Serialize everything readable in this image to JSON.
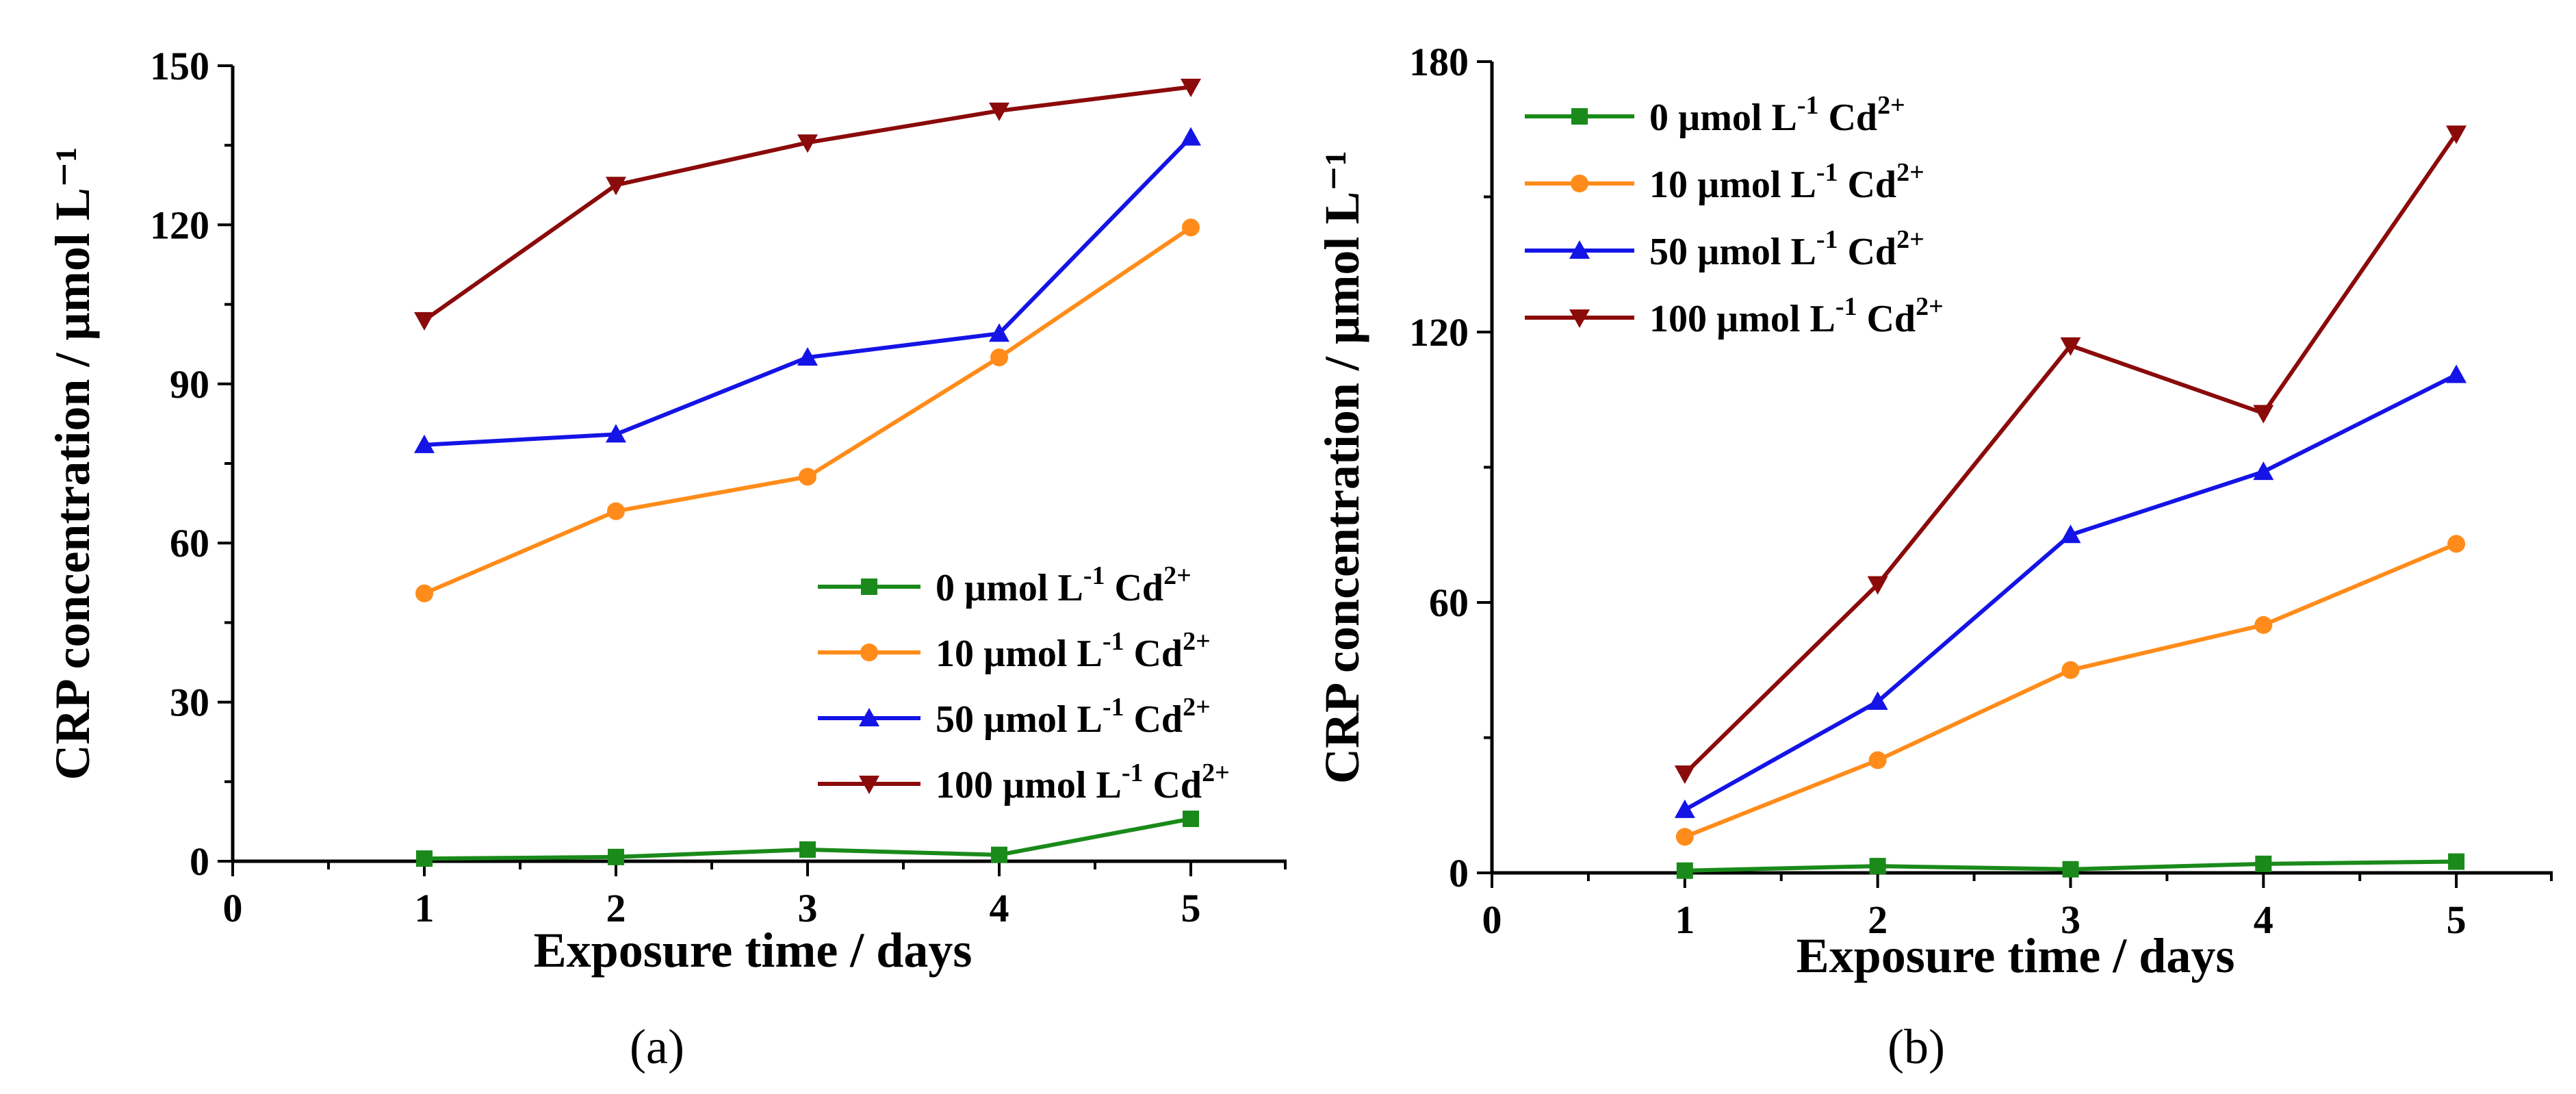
{
  "figure": {
    "panel_labels": [
      "(a)",
      "(b)"
    ]
  },
  "chart_data": [
    {
      "type": "line",
      "panel": "(a)",
      "title": "",
      "xlabel": "Exposure time / days",
      "ylabel": "CRP concentration / µmol L⁻¹",
      "xlim": [
        0,
        5.5
      ],
      "ylim": [
        0,
        150
      ],
      "xticks": [
        0,
        1,
        2,
        3,
        4,
        5
      ],
      "yticks": [
        0,
        30,
        60,
        90,
        120,
        150
      ],
      "legend_position": "lower-right",
      "x": [
        1,
        2,
        3,
        4,
        5
      ],
      "series": [
        {
          "name": "0 µmol L⁻¹ Cd²⁺",
          "legend_main": "0 µmol L",
          "legend_sup1": "-1",
          "legend_mid": " Cd",
          "legend_sup2": "2+",
          "color": "#1a8a1a",
          "marker": "square",
          "values": [
            0.5,
            0.8,
            2.2,
            1.2,
            8.0
          ]
        },
        {
          "name": "10 µmol L⁻¹ Cd²⁺",
          "legend_main": "10 µmol L",
          "legend_sup1": "-1",
          "legend_mid": " Cd",
          "legend_sup2": "2+",
          "color": "#ff8c1a",
          "marker": "circle",
          "values": [
            50.5,
            66,
            72.5,
            95,
            119.5
          ]
        },
        {
          "name": "50 µmol L⁻¹ Cd²⁺",
          "legend_main": "50 µmol L",
          "legend_sup1": "-1",
          "legend_mid": " Cd",
          "legend_sup2": "2+",
          "color": "#1414e6",
          "marker": "triangle-up",
          "values": [
            78.5,
            80.5,
            95,
            99.5,
            136.5
          ]
        },
        {
          "name": "100 µmol L⁻¹ Cd²⁺",
          "legend_main": "100 µmol L",
          "legend_sup1": "-1",
          "legend_mid": " Cd",
          "legend_sup2": "2+",
          "color": "#8b0a0a",
          "marker": "triangle-down",
          "values": [
            102,
            127.5,
            135.5,
            141.5,
            146
          ]
        }
      ]
    },
    {
      "type": "line",
      "panel": "(b)",
      "title": "",
      "xlabel": "Exposure time / days",
      "ylabel": "CRP concentration / µmol L⁻¹",
      "xlim": [
        0,
        5.5
      ],
      "ylim": [
        0,
        180
      ],
      "xticks": [
        0,
        1,
        2,
        3,
        4,
        5
      ],
      "yticks": [
        0,
        60,
        120,
        180
      ],
      "legend_position": "top-left",
      "x": [
        1,
        2,
        3,
        4,
        5
      ],
      "series": [
        {
          "name": "0 µmol L⁻¹ Cd²⁺",
          "legend_main": "0 µmol L",
          "legend_sup1": "-1",
          "legend_mid": " Cd",
          "legend_sup2": "2+",
          "color": "#1a8a1a",
          "marker": "square",
          "values": [
            0.5,
            1.5,
            0.8,
            2.0,
            2.5
          ]
        },
        {
          "name": "10 µmol L⁻¹ Cd²⁺",
          "legend_main": "10 µmol L",
          "legend_sup1": "-1",
          "legend_mid": " Cd",
          "legend_sup2": "2+",
          "color": "#ff8c1a",
          "marker": "circle",
          "values": [
            8,
            25,
            45,
            55,
            73
          ]
        },
        {
          "name": "50 µmol L⁻¹ Cd²⁺",
          "legend_main": "50 µmol L",
          "legend_sup1": "-1",
          "legend_mid": " Cd",
          "legend_sup2": "2+",
          "color": "#1414e6",
          "marker": "triangle-up",
          "values": [
            14,
            38,
            75,
            89,
            110.5
          ]
        },
        {
          "name": "100 µmol L⁻¹ Cd²⁺",
          "legend_main": "100 µmol L",
          "legend_sup1": "-1",
          "legend_mid": " Cd",
          "legend_sup2": "2+",
          "color": "#8b0a0a",
          "marker": "triangle-down",
          "values": [
            22,
            64,
            117,
            102,
            164
          ]
        }
      ]
    }
  ]
}
